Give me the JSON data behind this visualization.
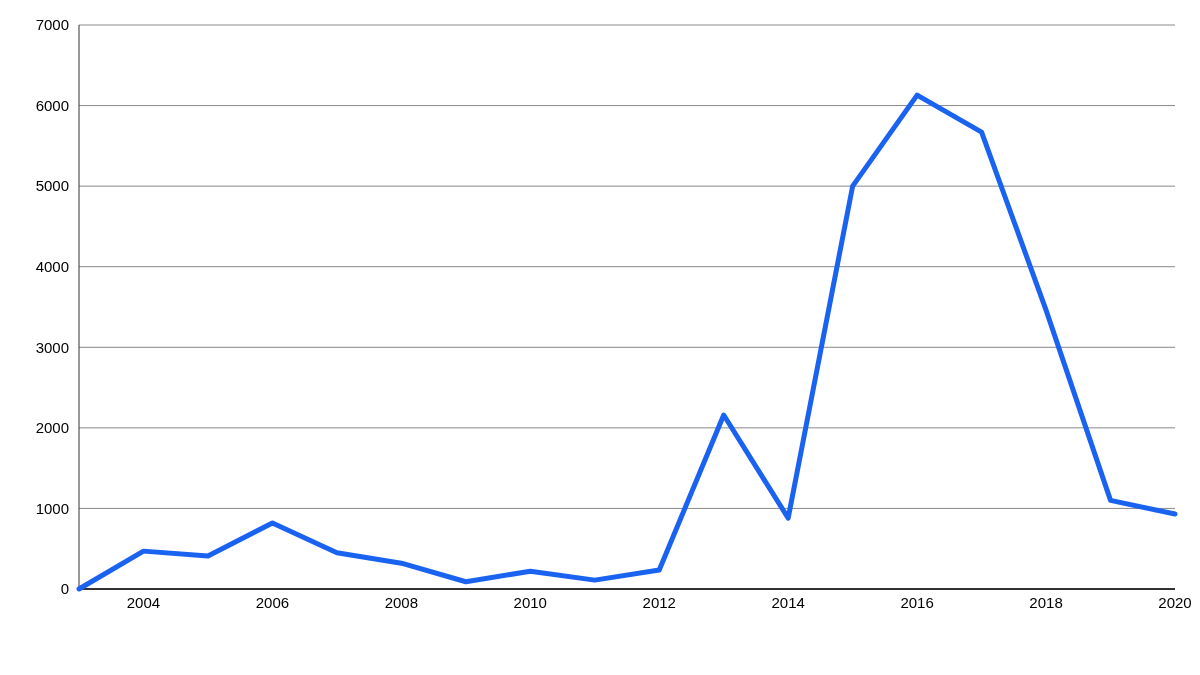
{
  "chart_data": {
    "type": "line",
    "x": [
      2003,
      2004,
      2005,
      2006,
      2007,
      2008,
      2009,
      2010,
      2011,
      2012,
      2013,
      2014,
      2015,
      2016,
      2017,
      2018,
      2019,
      2020
    ],
    "series": [
      {
        "color": "#1a62f0",
        "values": [
          0,
          470,
          410,
          820,
          450,
          320,
          90,
          220,
          110,
          235,
          2160,
          880,
          5000,
          6130,
          5670,
          3460,
          1100,
          930
        ]
      }
    ],
    "xlim": [
      2003,
      2020
    ],
    "xticks": [
      2004,
      2006,
      2008,
      2010,
      2012,
      2014,
      2016,
      2018,
      2020
    ],
    "ylim": [
      0,
      7000
    ],
    "yticks": [
      0,
      1000,
      2000,
      3000,
      4000,
      5000,
      6000,
      7000
    ],
    "grid": "y",
    "marker": "none",
    "line_style": "solid"
  }
}
